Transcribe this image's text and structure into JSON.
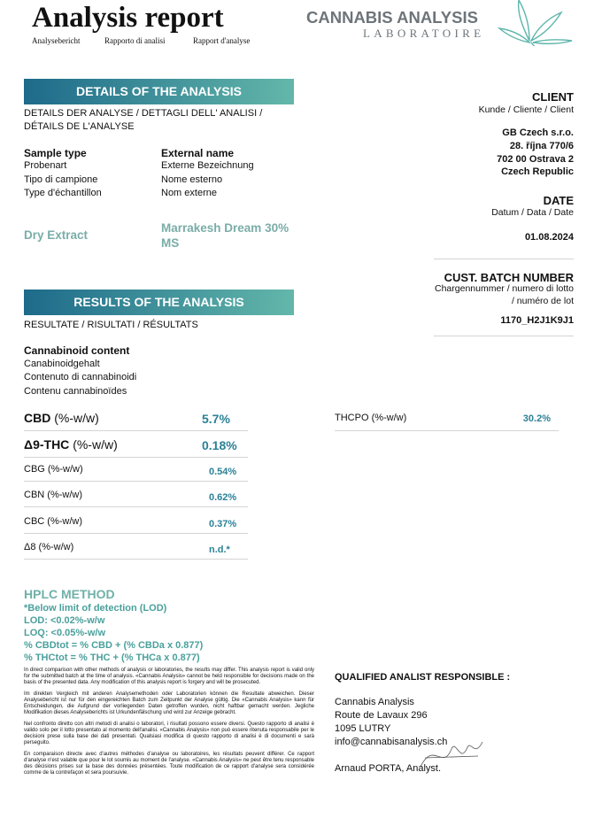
{
  "header": {
    "title": "Analysis report",
    "subtitles": [
      "Analysebericht",
      "Rapporto di analisi",
      "Rapport d'analyse"
    ],
    "logo_name": "CANNABIS ANALYSIS",
    "logo_sub": "LABORATOIRE"
  },
  "details": {
    "heading": "DETAILS OF THE ANALYSIS",
    "subheading": [
      "DETAILS DER ANALYSE / DETTAGLI DELL' ANALISI /",
      "DÉTAILS DE L'ANALYSE"
    ],
    "sample_type": {
      "label": "Sample type",
      "translations": [
        "Probenart",
        "Tipo di campione",
        "Type d'échantillon"
      ],
      "value": "Dry Extract"
    },
    "external_name": {
      "label": "External name",
      "translations": [
        "Externe Bezeichnung",
        "Nome esterno",
        "Nom externe"
      ],
      "value": "Marrakesh Dream 30% MS"
    }
  },
  "client": {
    "label": "CLIENT",
    "translation": "Kunde / Cliente / Client",
    "address": [
      "GB Czech s.r.o.",
      "28. října 770/6",
      "702 00 Ostrava 2",
      "Czech Republic"
    ]
  },
  "date": {
    "label": "DATE",
    "translation": "Datum / Data / Date",
    "value": "01.08.2024"
  },
  "batch": {
    "label": "CUST. BATCH NUMBER",
    "translation": [
      "Chargennummer / numero di lotto",
      "/ numéro de lot"
    ],
    "value": "1170_H2J1K9J1"
  },
  "results": {
    "heading": "RESULTS OF THE ANALYSIS",
    "subheading": "RESULTATE / RISULTATI / RÉSULTATS",
    "content_label": "Cannabinoid content",
    "content_translations": [
      "Canabinoidgehalt",
      "Contenuto di cannabinoidi",
      "Contenu cannabinoïdes"
    ],
    "rows": [
      {
        "name": "CBD",
        "unit": "(%-w/w)",
        "value": "5.7%"
      },
      {
        "name": "Δ9-THC",
        "unit": "(%-w/w)",
        "value": "0.18%"
      },
      {
        "name": "CBG",
        "unit": "(%-w/w)",
        "value": "0.54%"
      },
      {
        "name": "CBN",
        "unit": "(%-w/w)",
        "value": "0.62%"
      },
      {
        "name": "CBC",
        "unit": "(%-w/w)",
        "value": "0.37%"
      },
      {
        "name": "Δ8",
        "unit": "(%-w/w)",
        "value": "n.d.*"
      }
    ],
    "extra_row": {
      "name": "THCPO",
      "unit": "(%-w/w)",
      "value": "30.2%"
    }
  },
  "method": {
    "title": "HPLC METHOD",
    "lines": [
      "*Below limit of detection (LOD)",
      "LOD: <0.02%-w/w",
      "LOQ: <0.05%-w/w",
      "% CBDtot = % CBD + (% CBDa x 0.877)",
      "% THCtot = % THC + (% THCa x 0.877)"
    ]
  },
  "disclaimer": [
    "In direct comparison with other methods of analysis or laboratories, the results may differ. This analysis report is valid only for the submitted batch at the time of analysis. «Cannabis Analysis» cannot be held responsible for decisions made on the basis of the presented data. Any modification of this analysis report is forgery and will be prosecuted.",
    "Im direkten Vergleich mit anderen Analysemethoden oder Laboratorien können die Resultate abweichen. Dieser Analysebericht ist nur für den eingereichten Batch zum Zeitpunkt der Analyse gültig. Die «Cannabis Analysis» kann für Entscheidungen, die Aufgrund der vorliegenden Daten getroffen wurden, nicht haftbar gemacht werden. Jegliche Modifikation dieses Analyseberichts ist Urkundenfälschung und wird zur Anzeige gebracht.",
    "Nel confronto diretto con altri metodi di analisi o laboratori, i risultati possono essere diversi. Questo rapporto di analisi è valido solo per il lotto presentato al momento dell'analisi. «Cannabis Analysis» non può essere ritenuta responsabile per le decisioni prese sulla base dei dati presentati. Qualsiasi modifica di questo rapporto di analisi è di documenti e sarà perseguito.",
    "En comparaison directe avec d'autres méthodes d'analyse ou laboratoires, les résultats peuvent différer. Ce rapport d'analyse n'est valable que pour le lot soumis au moment de l'analyse. «Cannabis Analysis» ne peut être tenu responsable des décisions prises sur la base des données présentées. Toute modification de ce rapport d'analyse sera considérée comme de la contrefaçon et sera poursuivie."
  ],
  "signatory": {
    "heading": "QUALIFIED ANALIST RESPONSIBLE :",
    "lines": [
      "Cannabis Analysis",
      "Route de Lavaux 296",
      "1095 LUTRY",
      "info@cannabisanalysis.ch"
    ],
    "name": "Arnaud PORTA, Analyst."
  }
}
